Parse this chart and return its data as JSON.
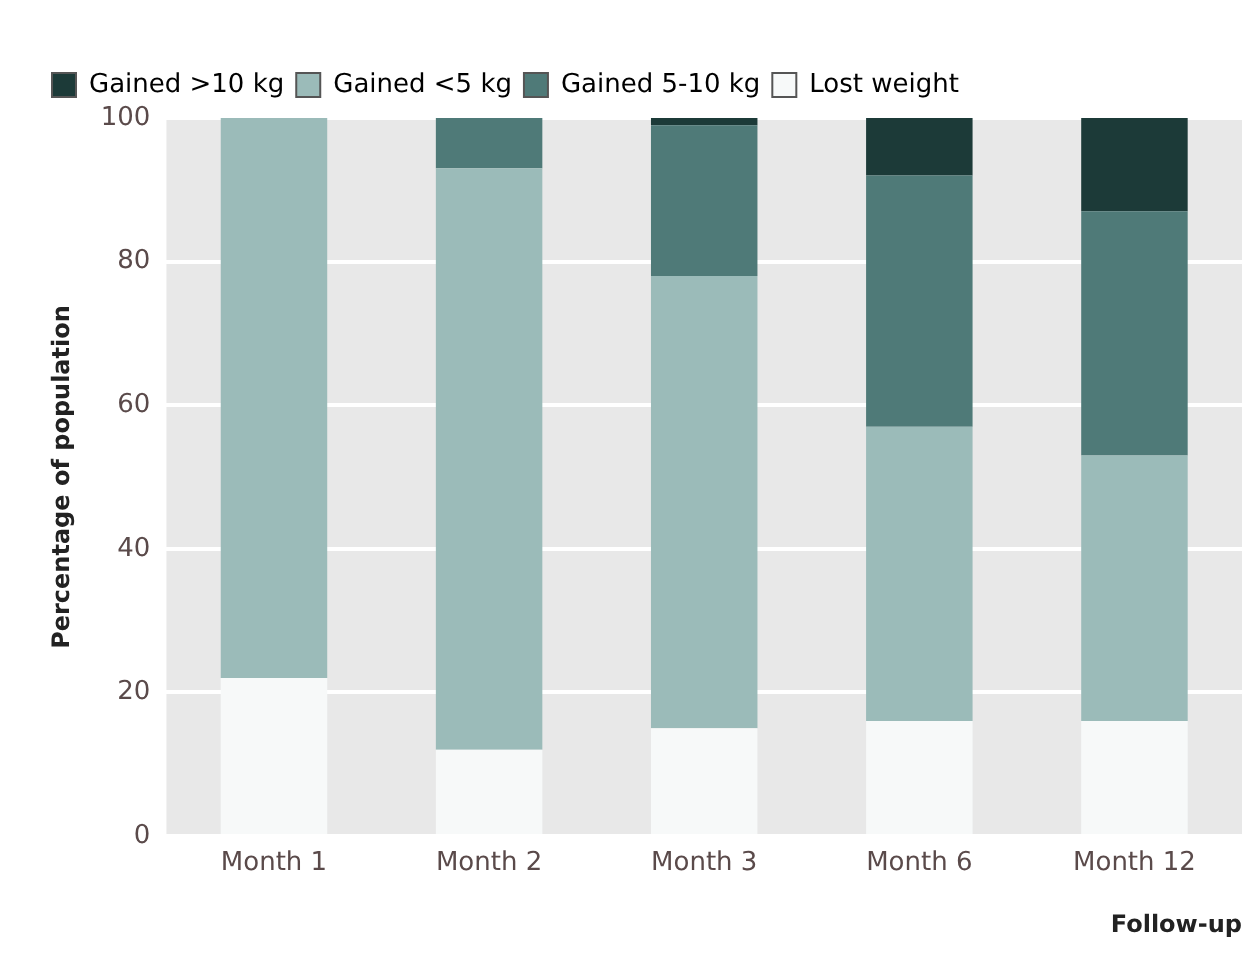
{
  "chart_data": {
    "type": "bar",
    "stacked": true,
    "xlabel": "Follow-up",
    "ylabel": "Percentage of population",
    "categories": [
      "Month 1",
      "Month 2",
      "Month 3",
      "Month 6",
      "Month 12"
    ],
    "series": [
      {
        "name": "Lost weight",
        "color": "#f7f9f9",
        "values": [
          22,
          12,
          15,
          16,
          16
        ]
      },
      {
        "name": "Gained <5 kg",
        "color": "#9bbbb9",
        "values": [
          78,
          81,
          63,
          41,
          37
        ]
      },
      {
        "name": "Gained 5-10 kg",
        "color": "#4f7a78",
        "values": [
          0,
          7,
          21,
          35,
          34
        ]
      },
      {
        "name": "Gained >10 kg",
        "color": "#1c3a38",
        "values": [
          0,
          0,
          1,
          8,
          13
        ]
      }
    ],
    "ylim": [
      0,
      100
    ],
    "yticks": [
      0,
      20,
      40,
      60,
      80,
      100
    ],
    "grid": "y",
    "legend": "top left"
  }
}
